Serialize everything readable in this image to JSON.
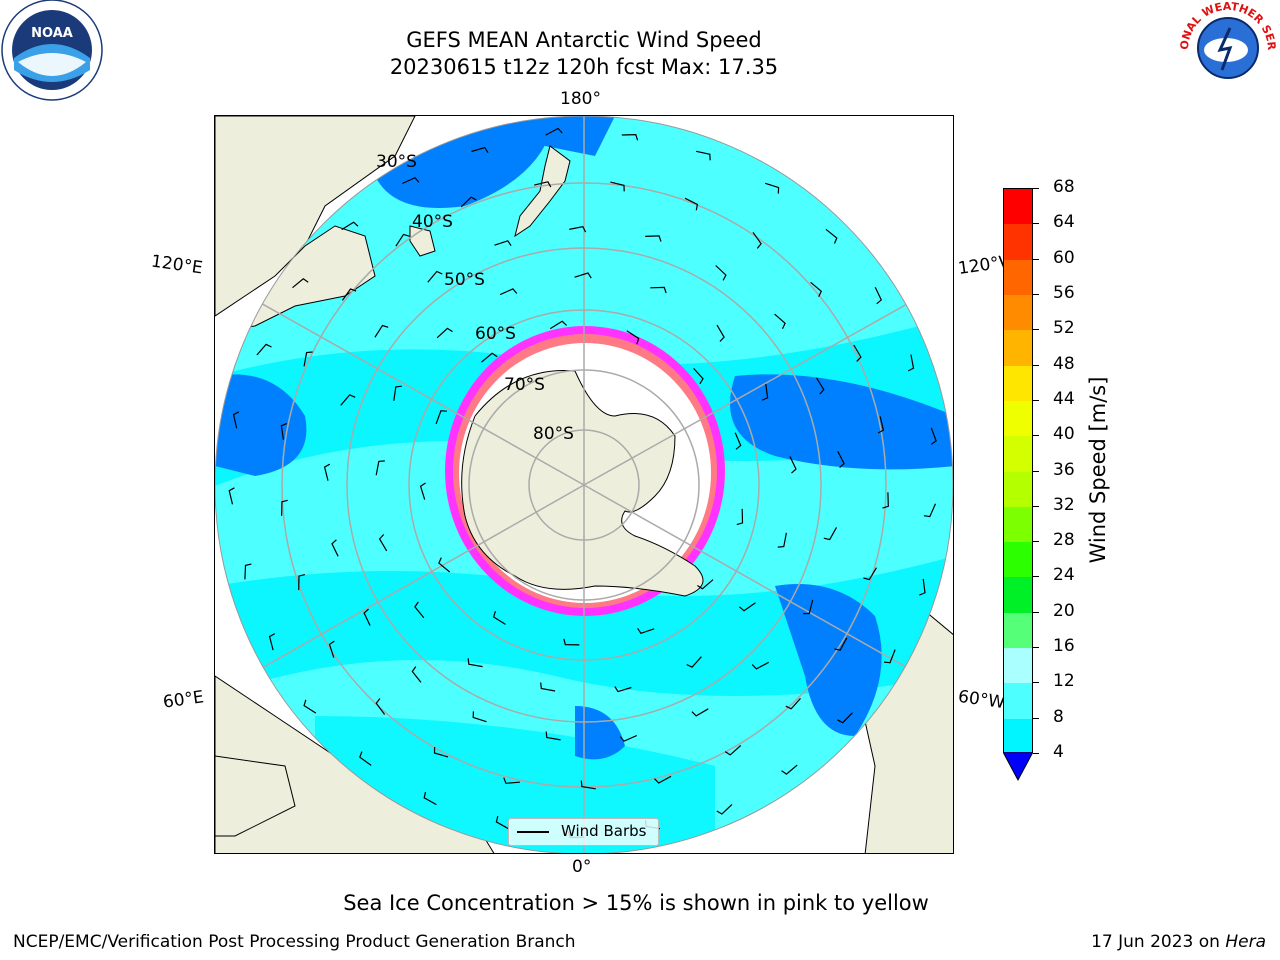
{
  "title": {
    "line1": "GEFS MEAN Antarctic Wind Speed",
    "line2": "20230615 t12z 120h fcst   Max: 17.35"
  },
  "logos": {
    "left": {
      "text": "NOAA",
      "icon": "noaa-logo-icon"
    },
    "right": {
      "text": "NATIONAL WEATHER SERVICE",
      "icon": "nws-logo-icon"
    }
  },
  "map": {
    "projection": "south-polar-stereographic",
    "longitude_labels": {
      "top": "180°",
      "bottom": "0°",
      "upper_left": "120°E",
      "upper_right": "120°W",
      "lower_left": "60°E",
      "lower_right": "60°W"
    },
    "latitude_labels": [
      "30°S",
      "40°S",
      "50°S",
      "60°S",
      "70°S",
      "80°S"
    ],
    "colors": {
      "land": "#eeeedc",
      "ocean_light": "#4dffff",
      "ocean_cyan": "#00f5ff",
      "ocean_blue": "#0080ff",
      "sea_ice_pink": "#ff33ff",
      "sea_ice_orange": "#ffaa33",
      "ice_shelf": "#ffffff",
      "gridline": "#aaaaaa"
    },
    "legend": {
      "label": "Wind Barbs"
    }
  },
  "colorbar": {
    "label": "Wind Speed [m/s]",
    "ticks": [
      "68",
      "64",
      "60",
      "56",
      "52",
      "48",
      "44",
      "40",
      "36",
      "32",
      "28",
      "24",
      "20",
      "16",
      "12",
      "8",
      "4"
    ],
    "segment_colors": [
      "#ff0000",
      "#ff3300",
      "#ff6600",
      "#ff8c00",
      "#ffb400",
      "#ffe600",
      "#f0ff00",
      "#d4ff00",
      "#b4ff00",
      "#7cff00",
      "#2bff00",
      "#00f028",
      "#55ff77",
      "#aaffff",
      "#4dffff",
      "#00f5ff",
      "#0080ff"
    ],
    "extend_color": "#0000ff"
  },
  "footnote": "Sea Ice Concentration > 15% is shown in pink to yellow",
  "footer": {
    "org": "NCEP/EMC/Verification Post Processing Product Generation Branch",
    "date": "17 Jun 2023 on",
    "machine": "Hera"
  }
}
